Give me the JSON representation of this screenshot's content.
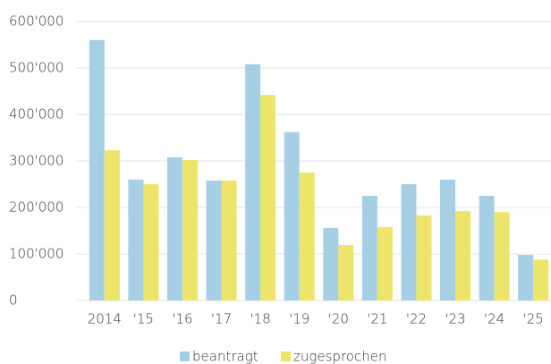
{
  "chart_data": {
    "type": "bar",
    "categories": [
      "2014",
      "'15",
      "'16",
      "'17",
      "'18",
      "'19",
      "'20",
      "'21",
      "'22",
      "'23",
      "'24",
      "'25"
    ],
    "series": [
      {
        "name": "beantragt",
        "color": "#a6cfe6",
        "values": [
          560000,
          260000,
          308000,
          258000,
          508000,
          362000,
          156000,
          225000,
          250000,
          260000,
          225000,
          98000
        ]
      },
      {
        "name": "zugesprochen",
        "color": "#ece56a",
        "values": [
          323000,
          250000,
          302000,
          258000,
          442000,
          275000,
          119000,
          158000,
          183000,
          192000,
          190000,
          88000
        ]
      }
    ],
    "ylim": [
      0,
      600000
    ],
    "yticks": [
      0,
      {
        "value": 100000,
        "label": "100'000"
      },
      {
        "value": 200000,
        "label": "200'000"
      },
      {
        "value": 300000,
        "label": "300'000"
      },
      {
        "value": 400000,
        "label": "400'000"
      },
      {
        "value": 500000,
        "label": "500'000"
      },
      {
        "value": 600000,
        "label": "600'000"
      }
    ],
    "grid": true,
    "legend": "bottom"
  }
}
